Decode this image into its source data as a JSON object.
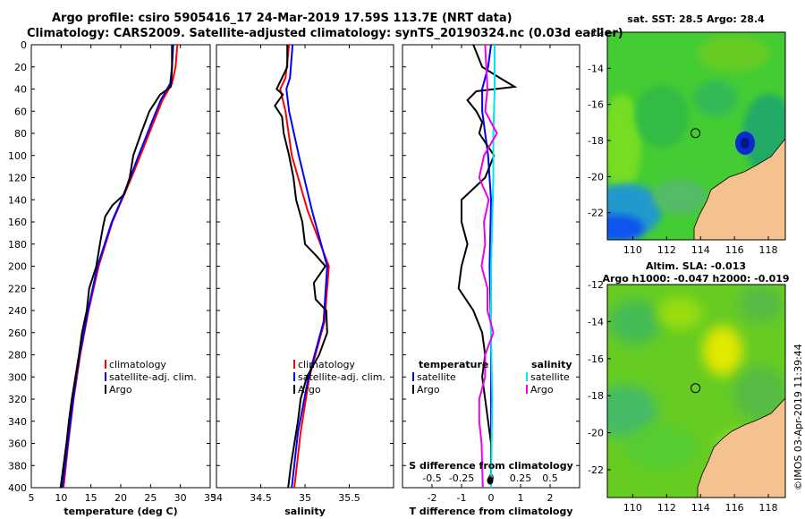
{
  "titles": {
    "line1": "Argo profile: csiro 5905416_17 24-Mar-2019 17.59S 113.7E (NRT data)",
    "line2": "Climatology: CARS2009. Satellite-adjusted climatology: synTS_20190324.nc (0.03d earlier)"
  },
  "watermark": "©IMOS 03-Apr-2019 11:39:44",
  "colors": {
    "climatology": "#ff0000",
    "satellite": "#0000ff",
    "argo": "#000000",
    "satellite_s": "#00e5ee",
    "argo_s": "#ee00ee",
    "land": "#f4c28e"
  },
  "chart_data": [
    {
      "type": "line",
      "title": "temperature",
      "xlabel": "temperature (deg C)",
      "ylabel": "",
      "xlim": [
        5,
        35
      ],
      "ylim": [
        400,
        0
      ],
      "xticks": [
        "5",
        "10",
        "15",
        "20",
        "25",
        "30",
        "35"
      ],
      "yticks": [
        "0",
        "20",
        "40",
        "60",
        "80",
        "100",
        "120",
        "140",
        "160",
        "180",
        "200",
        "220",
        "240",
        "260",
        "280",
        "300",
        "320",
        "340",
        "360",
        "380",
        "400"
      ],
      "legend": [
        "climatology",
        "satellite-adj. clim.",
        "Argo"
      ],
      "series": [
        {
          "name": "climatology",
          "color": "#ff0000",
          "depth": [
            0,
            20,
            35,
            50,
            70,
            100,
            120,
            140,
            160,
            200,
            240,
            280,
            320,
            360,
            400
          ],
          "values": [
            29.5,
            29.2,
            28.6,
            27.0,
            25.5,
            23.3,
            21.8,
            20.2,
            18.6,
            16.3,
            14.6,
            13.2,
            12.1,
            11.2,
            10.4
          ]
        },
        {
          "name": "satellite-adj. clim.",
          "color": "#0000ff",
          "depth": [
            0,
            20,
            35,
            50,
            70,
            100,
            120,
            140,
            160,
            200,
            240,
            280,
            320,
            360,
            400
          ],
          "values": [
            28.8,
            28.6,
            28.3,
            26.7,
            25.2,
            23.0,
            21.6,
            20.1,
            18.5,
            16.1,
            14.5,
            13.1,
            12.0,
            11.1,
            10.2
          ]
        },
        {
          "name": "Argo",
          "color": "#000000",
          "depth": [
            0,
            10,
            20,
            30,
            38,
            45,
            60,
            80,
            100,
            120,
            135,
            145,
            155,
            165,
            180,
            200,
            220,
            240,
            260,
            280,
            300,
            320,
            340,
            360,
            380,
            400
          ],
          "values": [
            28.6,
            28.6,
            28.6,
            28.5,
            28.4,
            26.6,
            24.8,
            23.4,
            22.1,
            21.5,
            20.6,
            18.6,
            17.4,
            17.0,
            16.5,
            15.9,
            14.7,
            14.3,
            13.5,
            13.0,
            12.4,
            11.8,
            11.3,
            10.9,
            10.4,
            9.9
          ]
        }
      ]
    },
    {
      "type": "line",
      "title": "salinity",
      "xlabel": "salinity",
      "xlim": [
        34,
        36
      ],
      "ylim": [
        400,
        0
      ],
      "xticks": [
        "34",
        "34.5",
        "35",
        "35.5"
      ],
      "legend": [
        "climatology",
        "satellite-adj. clim.",
        "Argo"
      ],
      "series": [
        {
          "name": "climatology",
          "color": "#ff0000",
          "depth": [
            0,
            30,
            40,
            60,
            100,
            150,
            200,
            250,
            300,
            350,
            400
          ],
          "values": [
            34.82,
            34.78,
            34.72,
            34.78,
            34.85,
            35.03,
            35.27,
            35.22,
            35.05,
            34.95,
            34.88
          ]
        },
        {
          "name": "satellite-adj. clim.",
          "color": "#0000ff",
          "depth": [
            0,
            30,
            40,
            60,
            100,
            150,
            200,
            250,
            300,
            350,
            400
          ],
          "values": [
            34.86,
            34.83,
            34.79,
            34.82,
            34.93,
            35.08,
            35.25,
            35.21,
            35.04,
            34.92,
            34.85
          ]
        },
        {
          "name": "Argo",
          "color": "#000000",
          "depth": [
            0,
            20,
            40,
            45,
            55,
            65,
            80,
            100,
            120,
            140,
            160,
            180,
            190,
            200,
            215,
            230,
            240,
            260,
            280,
            300,
            320,
            340,
            360,
            380,
            400
          ],
          "values": [
            34.8,
            34.8,
            34.68,
            34.75,
            34.66,
            34.74,
            34.76,
            34.82,
            34.87,
            34.9,
            34.97,
            35.0,
            35.12,
            35.23,
            35.1,
            35.12,
            35.24,
            35.25,
            35.16,
            35.02,
            34.95,
            34.92,
            34.88,
            34.84,
            34.81
          ]
        }
      ]
    },
    {
      "type": "line",
      "title": "differences",
      "xlabel": "T difference from climatology",
      "xlabel_top": "S difference from climatology",
      "xlim_T": [
        -3,
        3
      ],
      "xlim_S": [
        -0.75,
        0.75
      ],
      "ylim": [
        400,
        0
      ],
      "xticks_T": [
        "-2",
        "-1",
        "0",
        "1",
        "2"
      ],
      "xticks_S": [
        "-0.5",
        "-0.25",
        "0",
        "0.25",
        "0.5"
      ],
      "legend_T_title": "temperature",
      "legend_T": [
        "satellite",
        "Argo"
      ],
      "legend_S_title": "salinity",
      "legend_S": [
        "satellite",
        "Argo"
      ],
      "series": [
        {
          "name": "T satellite",
          "axis": "T",
          "color": "#0000ff",
          "depth": [
            0,
            20,
            40,
            60,
            80,
            100,
            140,
            200,
            260,
            320,
            400
          ],
          "values": [
            0.0,
            -0.1,
            -0.3,
            -0.3,
            -0.2,
            -0.1,
            0.0,
            -0.05,
            0.0,
            0.0,
            0.0
          ]
        },
        {
          "name": "T Argo",
          "axis": "T",
          "color": "#000000",
          "depth": [
            0,
            20,
            30,
            38,
            42,
            50,
            60,
            70,
            80,
            100,
            120,
            140,
            160,
            180,
            200,
            220,
            240,
            260,
            280,
            300,
            320,
            340,
            360,
            380,
            400
          ],
          "values": [
            -0.6,
            -0.3,
            0.3,
            0.8,
            -0.5,
            -0.8,
            -0.5,
            -0.3,
            -0.4,
            0.1,
            -0.2,
            -1.0,
            -1.0,
            -0.8,
            -1.0,
            -1.1,
            -0.6,
            -0.3,
            -0.2,
            -0.3,
            -0.2,
            -0.1,
            0.0,
            0.0,
            0.0
          ]
        },
        {
          "name": "S satellite",
          "axis": "S",
          "color": "#00e5ee",
          "depth": [
            0,
            40,
            80,
            120,
            160,
            200,
            260,
            320,
            400
          ],
          "values": [
            0.03,
            0.03,
            0.02,
            0.02,
            0.01,
            0.0,
            0.0,
            0.01,
            0.0
          ]
        },
        {
          "name": "S Argo",
          "axis": "S",
          "color": "#ee00ee",
          "depth": [
            0,
            40,
            60,
            80,
            100,
            120,
            140,
            160,
            180,
            200,
            220,
            240,
            260,
            280,
            300,
            320,
            340,
            360,
            400
          ],
          "values": [
            -0.05,
            -0.03,
            -0.05,
            0.05,
            -0.06,
            -0.1,
            -0.02,
            -0.06,
            -0.05,
            -0.08,
            -0.03,
            -0.03,
            0.02,
            -0.05,
            -0.05,
            -0.1,
            -0.1,
            -0.08,
            -0.07
          ]
        }
      ]
    },
    {
      "type": "heatmap",
      "title": "sat. SST: 28.5 Argo: 28.4",
      "xlim": [
        108.5,
        119
      ],
      "ylim": [
        -23.5,
        -12
      ],
      "xticks": [
        "110",
        "112",
        "114",
        "116",
        "118"
      ],
      "yticks": [
        "-12",
        "-14",
        "-16",
        "-18",
        "-20",
        "-22"
      ],
      "marker": {
        "lon": 113.7,
        "lat": -17.59
      }
    },
    {
      "type": "heatmap",
      "title": "Altim. SLA: -0.013",
      "subtitle": "Argo h1000: -0.047 h2000: -0.019",
      "xlim": [
        108.5,
        119
      ],
      "ylim": [
        -23.5,
        -12
      ],
      "xticks": [
        "110",
        "112",
        "114",
        "116",
        "118"
      ],
      "yticks": [
        "-12",
        "-14",
        "-16",
        "-18",
        "-20",
        "-22"
      ],
      "marker": {
        "lon": 113.7,
        "lat": -17.59
      }
    }
  ]
}
